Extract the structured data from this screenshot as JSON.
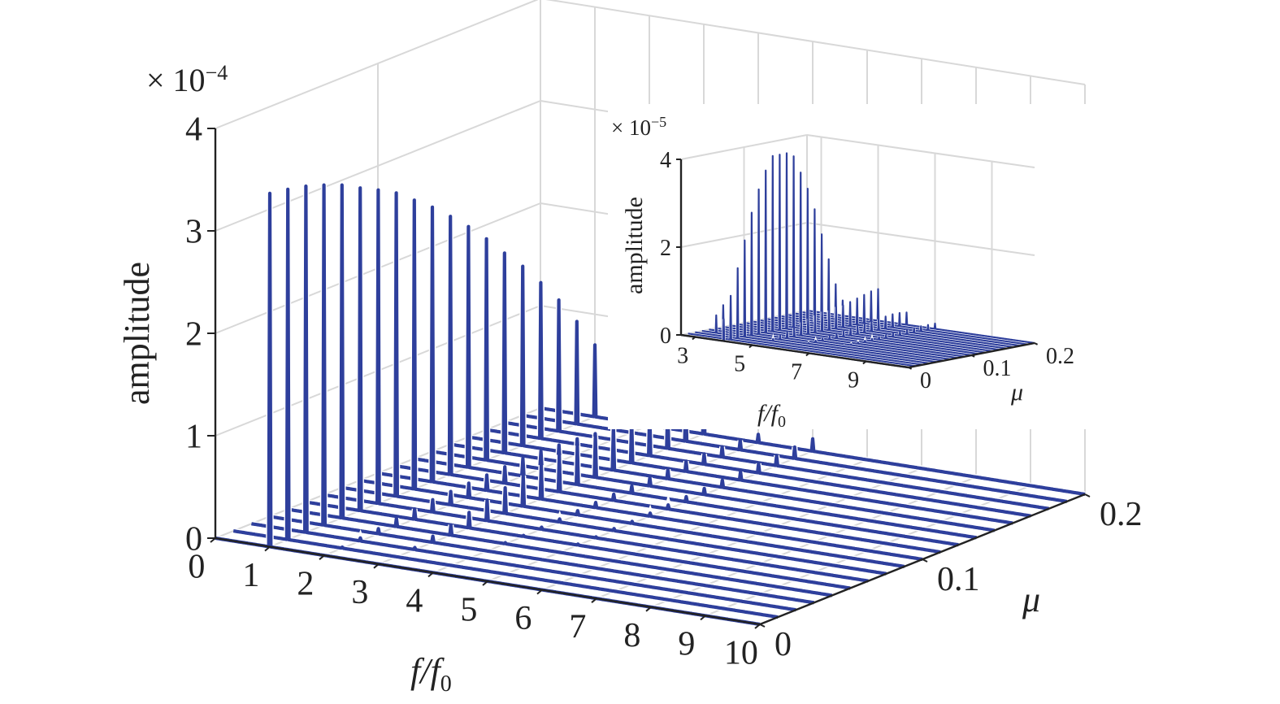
{
  "colors": {
    "series": "#2e3f9c",
    "grid": "#d8d8d8",
    "axis": "#222222"
  },
  "chart_data": [
    {
      "type": "line",
      "name": "main",
      "ylabel": "amplitude",
      "ylabel_display": "amplitude",
      "xlabel": "f/f0",
      "xlabel_parts": {
        "f1": "f/",
        "f2": "f",
        "sub": "0"
      },
      "zlabel": "μ",
      "exponent": {
        "prefix": "× 10",
        "power": "−4"
      },
      "x_ticks": [
        "0",
        "1",
        "2",
        "3",
        "4",
        "5",
        "6",
        "7",
        "8",
        "9",
        "10"
      ],
      "y_ticks": [
        "0",
        "0.1",
        "0.2"
      ],
      "z_ticks": [
        "0",
        "1",
        "2",
        "3",
        "4"
      ],
      "xlim": [
        0,
        10
      ],
      "ylim": [
        0,
        0.2
      ],
      "zlim": [
        0,
        4
      ],
      "grid": true,
      "mu_values": [
        0,
        0.0111,
        0.0222,
        0.0333,
        0.0444,
        0.0556,
        0.0667,
        0.0778,
        0.0889,
        0.1,
        0.1111,
        0.1222,
        0.1333,
        0.1444,
        0.1556,
        0.1667,
        0.1778,
        0.1889,
        0.2
      ],
      "peaks_note": "amplitude (×1e-4) at each integer harmonic f/f0, one row per μ value",
      "harmonic_1": [
        3.45,
        3.42,
        3.38,
        3.32,
        3.25,
        3.15,
        3.06,
        2.96,
        2.82,
        2.68,
        2.52,
        2.35,
        2.16,
        1.95,
        1.75,
        1.52,
        1.28,
        1.0,
        0.7
      ],
      "harmonic_2": [
        0.0,
        0.01,
        0.03,
        0.05,
        0.08,
        0.1,
        0.12,
        0.13,
        0.14,
        0.15,
        0.16,
        0.17,
        0.17,
        0.16,
        0.15,
        0.13,
        0.11,
        0.08,
        0.05
      ],
      "harmonic_3": [
        0.0,
        0.0,
        0.02,
        0.06,
        0.1,
        0.15,
        0.2,
        0.25,
        0.3,
        0.33,
        0.36,
        0.38,
        0.4,
        0.42,
        0.43,
        0.43,
        0.42,
        0.4,
        0.38
      ],
      "harmonic_4": [
        0.0,
        0.0,
        0.0,
        0.0,
        0.01,
        0.01,
        0.02,
        0.03,
        0.04,
        0.05,
        0.06,
        0.07,
        0.08,
        0.09,
        0.1,
        0.1,
        0.1,
        0.09,
        0.08
      ],
      "harmonic_5": [
        0.0,
        0.0,
        0.0,
        0.0,
        0.0,
        0.01,
        0.01,
        0.02,
        0.02,
        0.03,
        0.04,
        0.05,
        0.06,
        0.07,
        0.08,
        0.09,
        0.1,
        0.11,
        0.12
      ]
    },
    {
      "type": "line",
      "name": "inset",
      "ylabel": "amplitude",
      "ylabel_display": "amplitude",
      "xlabel": "f/f0",
      "xlabel_parts": {
        "f1": "f/",
        "f2": "f",
        "sub": "0"
      },
      "zlabel": "μ",
      "exponent": {
        "prefix": "× 10",
        "power": "−5"
      },
      "x_ticks": [
        "3",
        "5",
        "7",
        "9"
      ],
      "y_ticks": [
        "0",
        "0.1",
        "0.2"
      ],
      "z_ticks": [
        "0",
        "2",
        "4"
      ],
      "xlim": [
        2.5,
        10.5
      ],
      "ylim": [
        0,
        0.2
      ],
      "zlim": [
        0,
        4
      ],
      "grid": true,
      "peaks_note": "amplitude (×1e-5) at each integer harmonic f/f0, one row per μ value",
      "harmonic_3": [
        0.0,
        0.0,
        0.0,
        0.4,
        0.6,
        0.0,
        0.0,
        0.0,
        0.0,
        0.0,
        0.0,
        0.0,
        0.0,
        0.0,
        0.0,
        0.0,
        0.0,
        0.0,
        0.0
      ],
      "harmonic_4": [
        0.5,
        1.0,
        1.6,
        2.2,
        2.8,
        3.3,
        3.7,
        4.0,
        4.1,
        4.1,
        3.9,
        3.5,
        3.1,
        2.6,
        2.0,
        1.4,
        0.8,
        0.4,
        0.1
      ],
      "harmonic_5": [
        0.0,
        0.0,
        0.0,
        0.05,
        0.1,
        0.15,
        0.2,
        0.3,
        0.35,
        0.4,
        0.45,
        0.45,
        0.5,
        0.5,
        0.55,
        0.6,
        0.65,
        0.7,
        0.72
      ],
      "harmonic_6": [
        0.0,
        0.0,
        0.0,
        0.0,
        0.02,
        0.04,
        0.06,
        0.08,
        0.1,
        0.12,
        0.15,
        0.18,
        0.2,
        0.22,
        0.25,
        0.28,
        0.3,
        0.3,
        0.28
      ],
      "harmonic_7": [
        0.0,
        0.0,
        0.0,
        0.0,
        0.0,
        0.01,
        0.02,
        0.03,
        0.04,
        0.05,
        0.06,
        0.07,
        0.08,
        0.09,
        0.1,
        0.11,
        0.12,
        0.12,
        0.12
      ]
    }
  ]
}
